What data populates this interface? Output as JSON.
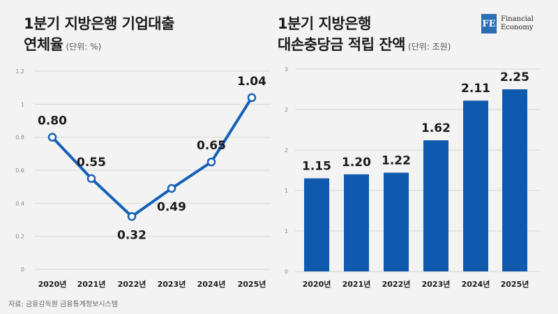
{
  "header": {
    "left_title_line1": "1분기 지방은행 기업대출",
    "left_title_line2": "연체율",
    "left_unit": "(단위: %)",
    "right_title_line1": "1분기 지방은행",
    "right_title_line2": "대손충당금 적립 잔액",
    "right_unit": "(단위: 조원)"
  },
  "logo": {
    "mark": "FE",
    "line1": "Financial",
    "line2": "Economy"
  },
  "source": "자료: 금융감독원 금융통계정보시스템",
  "colors": {
    "primary": "#1560b8",
    "bar": "#0f5aae",
    "grid": "#d6d6d6"
  },
  "chart_data": [
    {
      "type": "line",
      "categories": [
        "2020년",
        "2021년",
        "2022년",
        "2023년",
        "2024년",
        "2025년"
      ],
      "values": [
        0.8,
        0.55,
        0.32,
        0.49,
        0.65,
        1.04
      ],
      "data_labels": [
        "0.80",
        "0.55",
        "0.32",
        "0.49",
        "0.65",
        "1.04"
      ],
      "ylim": [
        0,
        1.2
      ],
      "yticks": [
        "0",
        "0.2",
        "0.4",
        "0.6",
        "0.8",
        "1",
        "1.2"
      ],
      "grid": true
    },
    {
      "type": "bar",
      "categories": [
        "2020년",
        "2021년",
        "2022년",
        "2023년",
        "2024년",
        "2025년"
      ],
      "values": [
        1.15,
        1.2,
        1.22,
        1.62,
        2.11,
        2.25
      ],
      "data_labels": [
        "1.15",
        "1.20",
        "1.22",
        "1.62",
        "2.11",
        "2.25"
      ],
      "ylim": [
        0,
        2.5
      ],
      "yticks": [
        "0",
        "1",
        "1",
        "2",
        "2",
        "3"
      ],
      "grid": true
    }
  ]
}
